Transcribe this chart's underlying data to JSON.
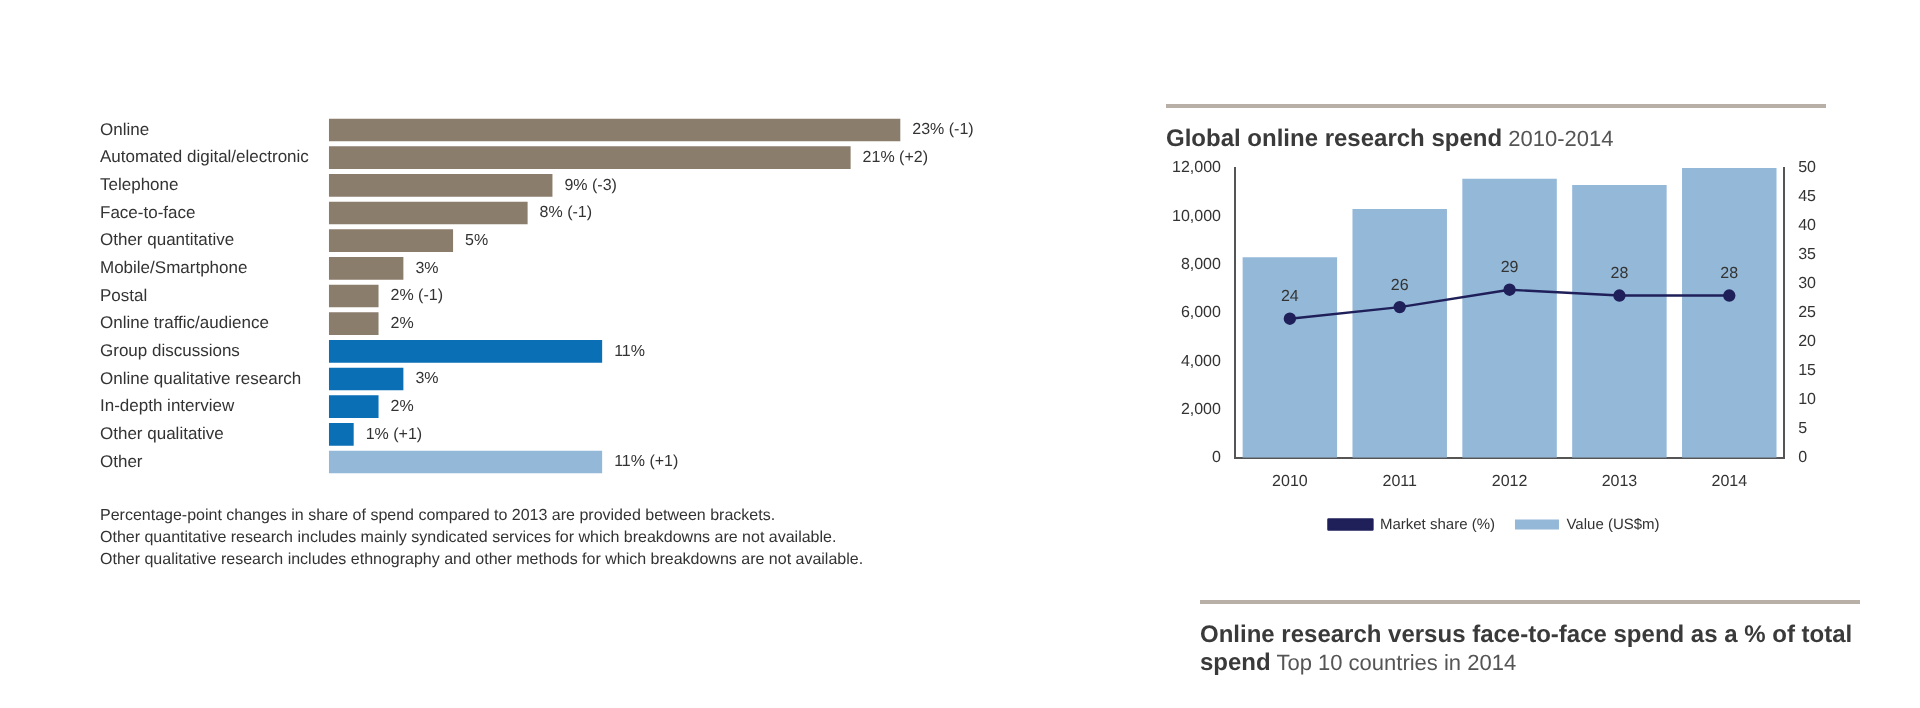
{
  "chart_data": [
    {
      "type": "bar",
      "orientation": "horizontal",
      "tick_labels": "y",
      "categories": [
        "Online",
        "Automated digital/electronic",
        "Telephone",
        "Face-to-face",
        "Other quantitative",
        "Mobile/Smartphone",
        "Postal",
        "Online traffic/audience",
        "Group discussions",
        "Online qualitative research",
        "In-depth interview",
        "Other qualitative",
        "Other"
      ],
      "values": [
        23,
        21,
        9,
        8,
        5,
        3,
        2,
        2,
        11,
        3,
        2,
        1,
        11
      ],
      "colors": [
        "#8b7d6b",
        "#8b7d6b",
        "#8b7d6b",
        "#8b7d6b",
        "#8b7d6b",
        "#8b7d6b",
        "#8b7d6b",
        "#8b7d6b",
        "#0a6fb5",
        "#0a6fb5",
        "#0a6fb5",
        "#0a6fb5",
        "#94b8d8"
      ],
      "value_labels": [
        "23% (-1)",
        "21% (+2)",
        "9% (-3)",
        "8% (-1)",
        "5%",
        "3%",
        "2% (-1)",
        "2%",
        "11%",
        "3%",
        "2%",
        "1% (+1)",
        "11% (+1)"
      ],
      "annotations": [
        "Percentage-point changes in share of spend compared to 2013 are provided between brackets.",
        "Other quantitative research includes mainly syndicated services for which breakdowns are not available.",
        "Other qualitative research includes ethnography and other methods for which breakdowns are not available."
      ]
    },
    {
      "type": "bar",
      "title": "Global online research spend",
      "subtitle": "2010-2014",
      "categories": [
        "2010",
        "2011",
        "2012",
        "2013",
        "2014"
      ],
      "series": [
        {
          "name": "Value (US$m)",
          "color": "#94b8d8",
          "values": [
            8300,
            10300,
            11550,
            11300,
            12000
          ]
        },
        {
          "name": "Market share (%)",
          "type": "line",
          "axis": "y2",
          "color": "#1f1f5a",
          "values": [
            24,
            26,
            29,
            28,
            28
          ],
          "value_labels": [
            "24",
            "26",
            "29",
            "28",
            "28"
          ]
        }
      ],
      "ylim": [
        0,
        12000
      ],
      "yticks": [
        {
          "value": 0,
          "label": "0"
        },
        {
          "value": 2000,
          "label": "2,000"
        },
        {
          "value": 4000,
          "label": "4,000"
        },
        {
          "value": 6000,
          "label": "6,000"
        },
        {
          "value": 8000,
          "label": "8,000"
        },
        {
          "value": 10000,
          "label": "10,000"
        },
        {
          "value": 12000,
          "label": "12,000"
        }
      ],
      "y2lim": [
        0,
        50
      ],
      "y2ticks": [
        0,
        5,
        10,
        15,
        20,
        25,
        30,
        35,
        40,
        45,
        50
      ],
      "legend": "bottom",
      "marker": "circle"
    },
    {
      "type": "other",
      "title": "Online research versus face-to-face spend as a % of total spend",
      "subtitle": "Top 10 countries in 2014"
    }
  ]
}
